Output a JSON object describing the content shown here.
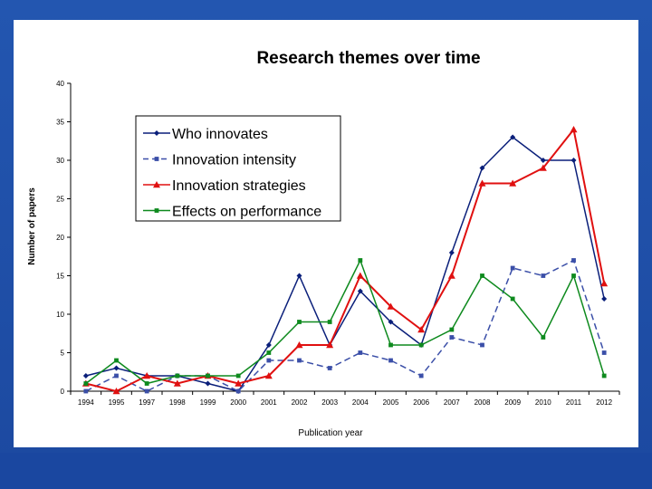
{
  "chart_data": {
    "type": "line",
    "title": "Research themes over time",
    "xlabel": "Publication year",
    "ylabel": "Number of papers",
    "ylim": [
      0,
      40
    ],
    "yticks": [
      0,
      5,
      10,
      15,
      20,
      25,
      30,
      35,
      40
    ],
    "categories": [
      "1994",
      "1995",
      "1997",
      "1998",
      "1999",
      "2000",
      "2001",
      "2002",
      "2003",
      "2004",
      "2005",
      "2006",
      "2007",
      "2008",
      "2009",
      "2010",
      "2011",
      "2012"
    ],
    "legend_position": "upper-left-inside",
    "series": [
      {
        "name": "Who innovates",
        "color": "#0a1f7a",
        "marker": "diamond",
        "dash": "solid",
        "values": [
          2,
          3,
          2,
          2,
          1,
          0,
          6,
          15,
          6,
          13,
          9,
          6,
          18,
          29,
          33,
          30,
          30,
          12
        ]
      },
      {
        "name": "Innovation intensity",
        "color": "#3b4fa8",
        "marker": "square",
        "dash": "dashed",
        "values": [
          0,
          2,
          0,
          2,
          2,
          0,
          4,
          4,
          3,
          5,
          4,
          2,
          7,
          6,
          16,
          15,
          17,
          5
        ]
      },
      {
        "name": "Innovation strategies",
        "color": "#e01010",
        "marker": "triangle",
        "dash": "solid",
        "values": [
          1,
          0,
          2,
          1,
          2,
          1,
          2,
          6,
          6,
          15,
          11,
          8,
          15,
          27,
          27,
          29,
          34,
          14
        ]
      },
      {
        "name": "Effects on performance",
        "color": "#0e8a1e",
        "marker": "square",
        "dash": "solid",
        "values": [
          1,
          4,
          1,
          2,
          2,
          2,
          5,
          9,
          9,
          17,
          6,
          6,
          8,
          15,
          12,
          7,
          15,
          2
        ]
      }
    ]
  }
}
